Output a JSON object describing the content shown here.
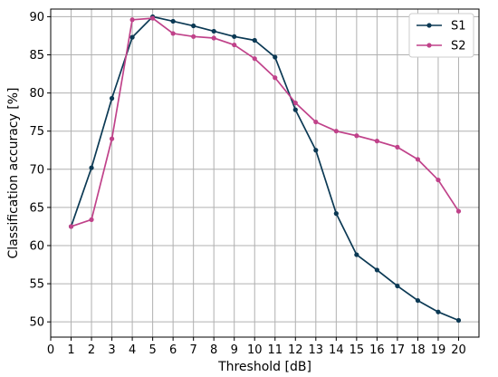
{
  "chart_data": {
    "type": "line",
    "xlabel": "Threshold [dB]",
    "ylabel": "Classification accuracy [%]",
    "xlim": [
      0,
      21
    ],
    "ylim": [
      48,
      91
    ],
    "xticks": [
      0,
      1,
      2,
      3,
      4,
      5,
      6,
      7,
      8,
      9,
      10,
      11,
      12,
      13,
      14,
      15,
      16,
      17,
      18,
      19,
      20
    ],
    "yticks": [
      50,
      55,
      60,
      65,
      70,
      75,
      80,
      85,
      90
    ],
    "grid": true,
    "legend_position": "top-right",
    "x": [
      1,
      2,
      3,
      4,
      5,
      6,
      7,
      8,
      9,
      10,
      11,
      12,
      13,
      14,
      15,
      16,
      17,
      18,
      19,
      20
    ],
    "series": [
      {
        "name": "S1",
        "color": "#0b3954",
        "values": [
          62.5,
          70.2,
          79.3,
          87.3,
          90.0,
          89.4,
          88.8,
          88.1,
          87.4,
          86.9,
          84.7,
          77.8,
          72.5,
          64.2,
          58.8,
          56.8,
          54.7,
          52.8,
          51.3,
          50.2
        ]
      },
      {
        "name": "S2",
        "color": "#c0428a",
        "values": [
          62.5,
          63.4,
          74.0,
          89.6,
          89.8,
          87.8,
          87.4,
          87.2,
          86.3,
          84.5,
          82.0,
          78.7,
          76.2,
          75.0,
          74.4,
          73.7,
          72.9,
          71.3,
          68.6,
          64.5
        ]
      }
    ]
  }
}
